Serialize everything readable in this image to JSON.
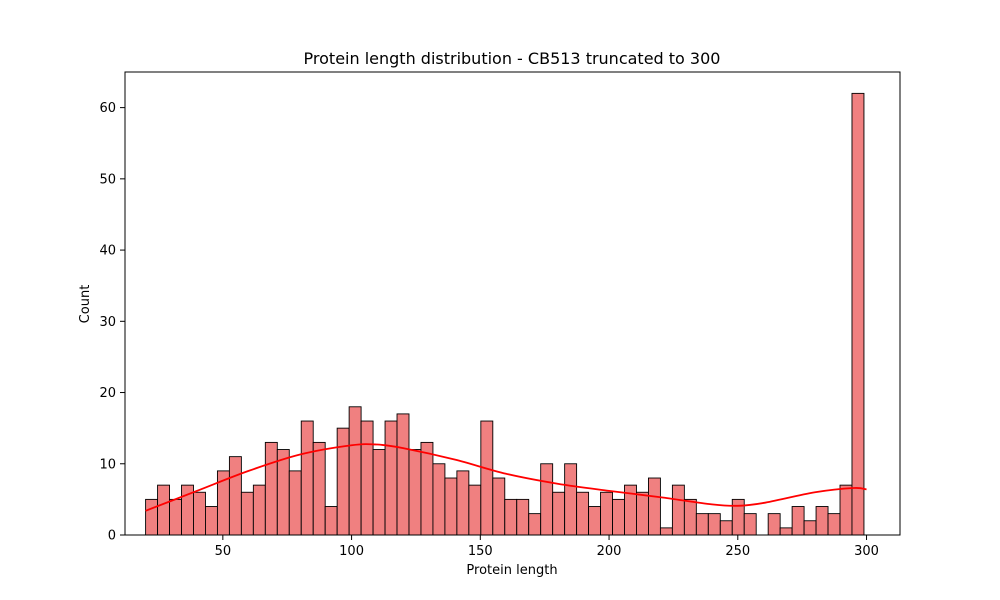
{
  "chart_data": {
    "type": "bar",
    "title": "Protein length distribution - CB513 truncated to 300",
    "xlabel": "Protein length",
    "ylabel": "Count",
    "xlim": [
      12,
      313
    ],
    "ylim": [
      0,
      65
    ],
    "x_ticks": [
      50,
      100,
      150,
      200,
      250,
      300
    ],
    "y_ticks": [
      0,
      10,
      20,
      30,
      40,
      50,
      60
    ],
    "bin_start": 20,
    "bin_width": 4.65,
    "counts": [
      5,
      7,
      5,
      7,
      6,
      4,
      9,
      11,
      6,
      7,
      13,
      12,
      9,
      16,
      13,
      4,
      15,
      18,
      16,
      12,
      16,
      17,
      12,
      13,
      10,
      8,
      9,
      7,
      16,
      8,
      5,
      5,
      3,
      10,
      6,
      10,
      6,
      4,
      6,
      5,
      7,
      6,
      8,
      1,
      7,
      5,
      3,
      3,
      2,
      5,
      3,
      0,
      3,
      1,
      4,
      2,
      4,
      3,
      7,
      62
    ],
    "kde": {
      "x": [
        20,
        40,
        60,
        80,
        100,
        110,
        120,
        140,
        160,
        180,
        200,
        220,
        240,
        250,
        260,
        280,
        295,
        300
      ],
      "y": [
        3.4,
        6.2,
        9.0,
        11.3,
        12.6,
        12.7,
        12.2,
        10.6,
        8.6,
        7.2,
        6.2,
        5.3,
        4.3,
        4.1,
        4.5,
        6.0,
        6.6,
        6.4
      ]
    },
    "colors": {
      "bar_fill": "#f08080",
      "bar_edge": "#000000",
      "kde_line": "#ff0000"
    },
    "grid": false,
    "legend": "none"
  }
}
